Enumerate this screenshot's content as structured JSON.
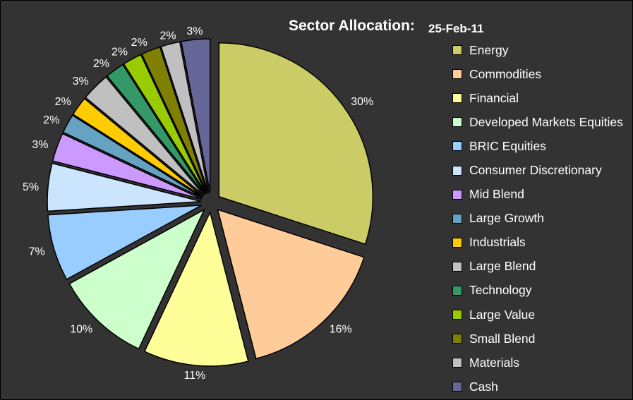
{
  "chart_data": {
    "type": "pie",
    "title": "Sector Allocation:",
    "subtitle": "25-Feb-11",
    "legend_position": "right",
    "slices": [
      {
        "label": "Energy",
        "value": 30,
        "display": "30%",
        "color": "#CCCC66"
      },
      {
        "label": "Commodities",
        "value": 16,
        "display": "16%",
        "color": "#FFCC99"
      },
      {
        "label": "Financial",
        "value": 11,
        "display": "11%",
        "color": "#FFFF99"
      },
      {
        "label": "Developed Markets Equities",
        "value": 10,
        "display": "10%",
        "color": "#CCFFCC"
      },
      {
        "label": "BRIC Equities",
        "value": 7,
        "display": "7%",
        "color": "#99CCFF"
      },
      {
        "label": "Consumer Discretionary",
        "value": 5,
        "display": "5%",
        "color": "#CCE5FF"
      },
      {
        "label": "Mid Blend",
        "value": 3,
        "display": "3%",
        "color": "#CC99FF"
      },
      {
        "label": "Large Growth",
        "value": 2,
        "display": "2%",
        "color": "#66A3C2"
      },
      {
        "label": "Industrials",
        "value": 2,
        "display": "2%",
        "color": "#FFCC00"
      },
      {
        "label": "Large Blend",
        "value": 3,
        "display": "3%",
        "color": "#C0C0C0"
      },
      {
        "label": "Technology",
        "value": 2,
        "display": "2%",
        "color": "#339966"
      },
      {
        "label": "Large Value",
        "value": 2,
        "display": "2%",
        "color": "#99CC00"
      },
      {
        "label": "Small Blend",
        "value": 2,
        "display": "2%",
        "color": "#808000"
      },
      {
        "label": "Materials",
        "value": 2,
        "display": "2%",
        "color": "#C0C0C0"
      },
      {
        "label": "Cash",
        "value": 3,
        "display": "3%",
        "color": "#666699"
      }
    ]
  }
}
